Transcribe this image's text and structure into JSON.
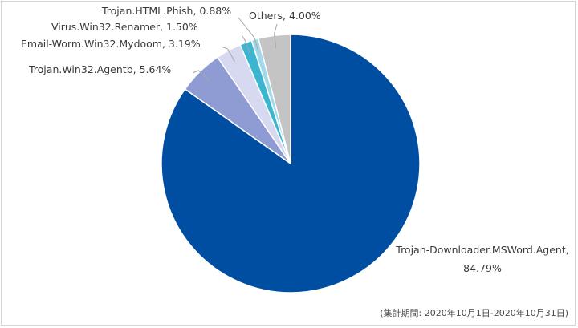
{
  "chart_data": {
    "type": "pie",
    "start_angle_deg": 0,
    "direction": "clockwise",
    "slices": [
      {
        "name": "Trojan-Downloader.MSWord.Agent",
        "value": 84.79,
        "label_lines": [
          "Trojan-Downloader.MSWord.Agent,",
          "84.79%"
        ],
        "color": "#004ea2"
      },
      {
        "name": "Trojan.Win32.Agentb",
        "value": 5.64,
        "label_lines": [
          "Trojan.Win32.Agentb, 5.64%"
        ],
        "color": "#8f9bd3"
      },
      {
        "name": "Email-Worm.Win32.Mydoom",
        "value": 3.19,
        "label_lines": [
          "Email-Worm.Win32.Mydoom, 3.19%"
        ],
        "color": "#d6d9ef"
      },
      {
        "name": "Virus.Win32.Renamer",
        "value": 1.5,
        "label_lines": [
          "Virus.Win32.Renamer, 1.50%"
        ],
        "color": "#3cb5d1"
      },
      {
        "name": "Trojan.HTML.Phish",
        "value": 0.88,
        "label_lines": [
          "Trojan.HTML.Phish, 0.88%"
        ],
        "color": "#9fd9ea"
      },
      {
        "name": "Others",
        "value": 4.0,
        "label_lines": [
          "Others, 4.00%"
        ],
        "color": "#c4c4c4"
      }
    ],
    "period_note": "(集計期間: 2020年10月1日-2020年10月31日)"
  }
}
